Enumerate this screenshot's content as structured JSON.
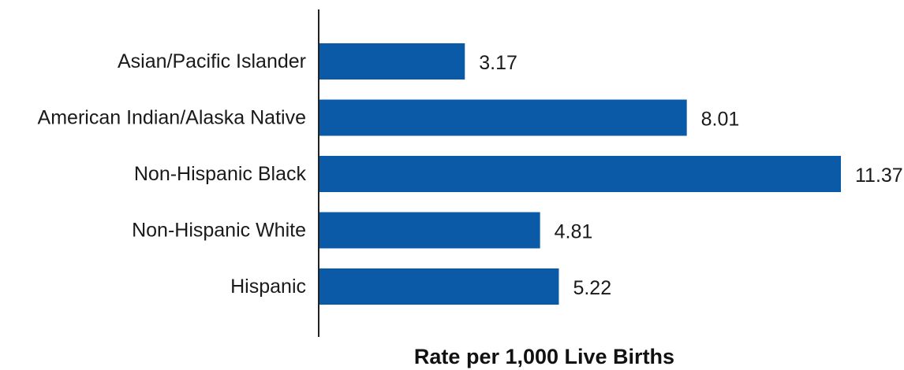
{
  "chart_data": {
    "type": "bar",
    "orientation": "horizontal",
    "categories": [
      "Asian/Pacific Islander",
      "American Indian/Alaska Native",
      "Non-Hispanic Black",
      "Non-Hispanic White",
      "Hispanic"
    ],
    "values": [
      3.17,
      8.01,
      11.37,
      4.81,
      5.22
    ],
    "value_labels": [
      "3.17",
      "8.01",
      "11.37",
      "4.81",
      "5.22"
    ],
    "title": "",
    "xlabel": "Rate per 1,000 Live Births",
    "ylabel": "",
    "xlim": [
      0,
      11.37
    ],
    "grid": false,
    "legend": "none",
    "bar_color": "#0a5aa8"
  }
}
